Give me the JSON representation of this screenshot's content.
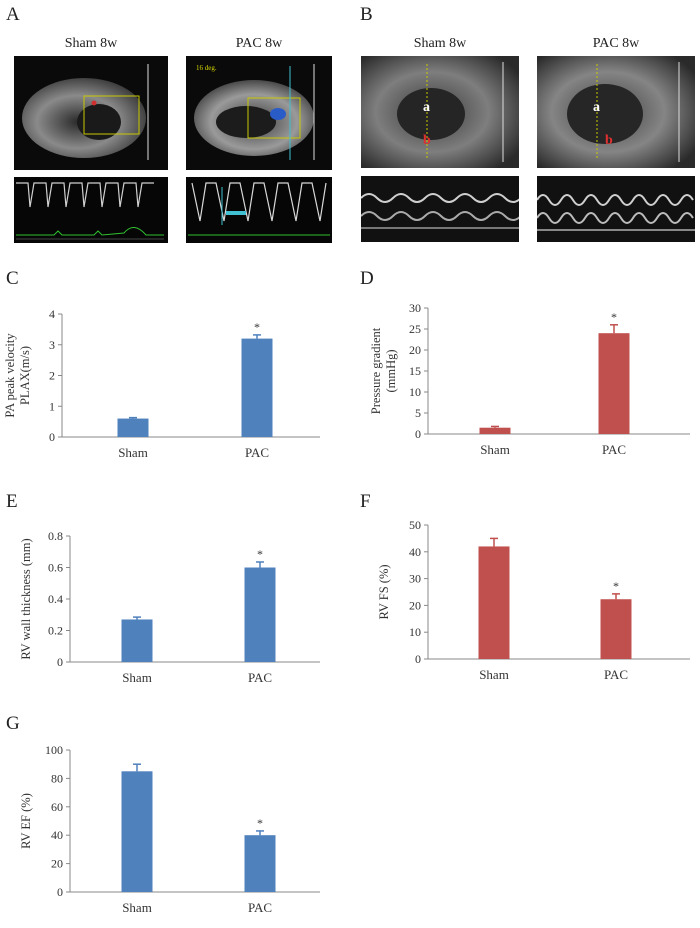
{
  "figure": {
    "panel_a": {
      "label": "A",
      "titles": [
        "Sham 8w",
        "PAC 8w"
      ],
      "doppler_label": "16 deg."
    },
    "panel_b": {
      "label": "B",
      "titles": [
        "Sham 8w",
        "PAC 8w"
      ],
      "marker_a": "a",
      "marker_b": "b"
    }
  },
  "chart_data": [
    {
      "id": "C",
      "label": "C",
      "type": "bar",
      "categories": [
        "Sham",
        "PAC"
      ],
      "values": [
        0.6,
        3.2
      ],
      "errors": [
        0.03,
        0.12
      ],
      "significance": [
        "",
        "*"
      ],
      "ylabel_lines": [
        "PA peak velocity",
        "PLAX(m/s)"
      ],
      "ylim": [
        0,
        4
      ],
      "ticks": [
        0,
        1,
        2,
        3,
        4
      ],
      "color": "#4f81bd"
    },
    {
      "id": "D",
      "label": "D",
      "type": "bar",
      "categories": [
        "Sham",
        "PAC"
      ],
      "values": [
        1.5,
        24.0
      ],
      "errors": [
        0.3,
        2.0
      ],
      "significance": [
        "",
        "*"
      ],
      "ylabel_lines": [
        "Pressure gradient",
        "(mmHg)"
      ],
      "ylim": [
        0,
        30
      ],
      "ticks": [
        0,
        5,
        10,
        15,
        20,
        25,
        30
      ],
      "color": "#c0504d"
    },
    {
      "id": "E",
      "label": "E",
      "type": "bar",
      "categories": [
        "Sham",
        "PAC"
      ],
      "values": [
        0.27,
        0.6
      ],
      "errors": [
        0.015,
        0.035
      ],
      "significance": [
        "",
        "*"
      ],
      "ylabel_lines": [
        "RV wall thickness (mm)"
      ],
      "ylim": [
        0,
        0.8
      ],
      "ticks": [
        0,
        0.2,
        0.4,
        0.6,
        0.8
      ],
      "color": "#4f81bd"
    },
    {
      "id": "F",
      "label": "F",
      "type": "bar",
      "categories": [
        "Sham",
        "PAC"
      ],
      "values": [
        42.0,
        22.3
      ],
      "errors": [
        3.0,
        2.0
      ],
      "significance": [
        "",
        "*"
      ],
      "ylabel_lines": [
        "RV FS (%)"
      ],
      "ylim": [
        0,
        50
      ],
      "ticks": [
        0,
        10,
        20,
        30,
        40,
        50
      ],
      "color": "#c0504d"
    },
    {
      "id": "G",
      "label": "G",
      "type": "bar",
      "categories": [
        "Sham",
        "PAC"
      ],
      "values": [
        85.0,
        40.0
      ],
      "errors": [
        5.0,
        3.0
      ],
      "significance": [
        "",
        "*"
      ],
      "ylabel_lines": [
        "RV EF (%)"
      ],
      "ylim": [
        0,
        100
      ],
      "ticks": [
        0,
        20,
        40,
        60,
        80,
        100
      ],
      "color": "#4f81bd"
    }
  ]
}
